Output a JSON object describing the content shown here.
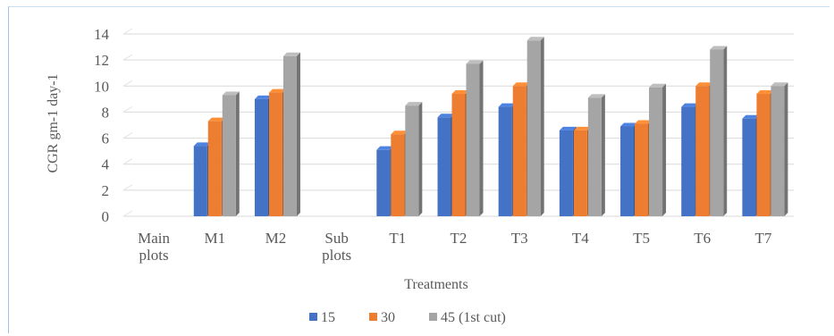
{
  "chart_data": {
    "type": "bar",
    "title": "",
    "xlabel": "Treatments",
    "ylabel": "CGR gm-1 day-1",
    "ylim": [
      0,
      14
    ],
    "yticks": [
      "0",
      "2",
      "4",
      "6",
      "8",
      "10",
      "12",
      "14"
    ],
    "grid": true,
    "legend_position": "bottom",
    "categories": [
      [
        "Main",
        "plots"
      ],
      [
        "M1"
      ],
      [
        "M2"
      ],
      [
        "Sub",
        "plots"
      ],
      [
        "T1"
      ],
      [
        "T2"
      ],
      [
        "T3"
      ],
      [
        "T4"
      ],
      [
        "T5"
      ],
      [
        "T6"
      ],
      [
        "T7"
      ]
    ],
    "series": [
      {
        "name": "15",
        "color": "#4472c4",
        "values": [
          null,
          5.4,
          9.0,
          null,
          5.1,
          7.6,
          8.4,
          6.6,
          6.9,
          8.4,
          7.5
        ]
      },
      {
        "name": "30",
        "color": "#ed7d31",
        "values": [
          null,
          7.3,
          9.5,
          null,
          6.3,
          9.4,
          10.0,
          6.6,
          7.1,
          10.0,
          9.4
        ]
      },
      {
        "name": "45 (1st cut)",
        "color": "#a5a5a5",
        "values": [
          null,
          9.3,
          12.3,
          null,
          8.5,
          11.7,
          13.5,
          9.1,
          9.9,
          12.8,
          10.0
        ]
      }
    ]
  }
}
